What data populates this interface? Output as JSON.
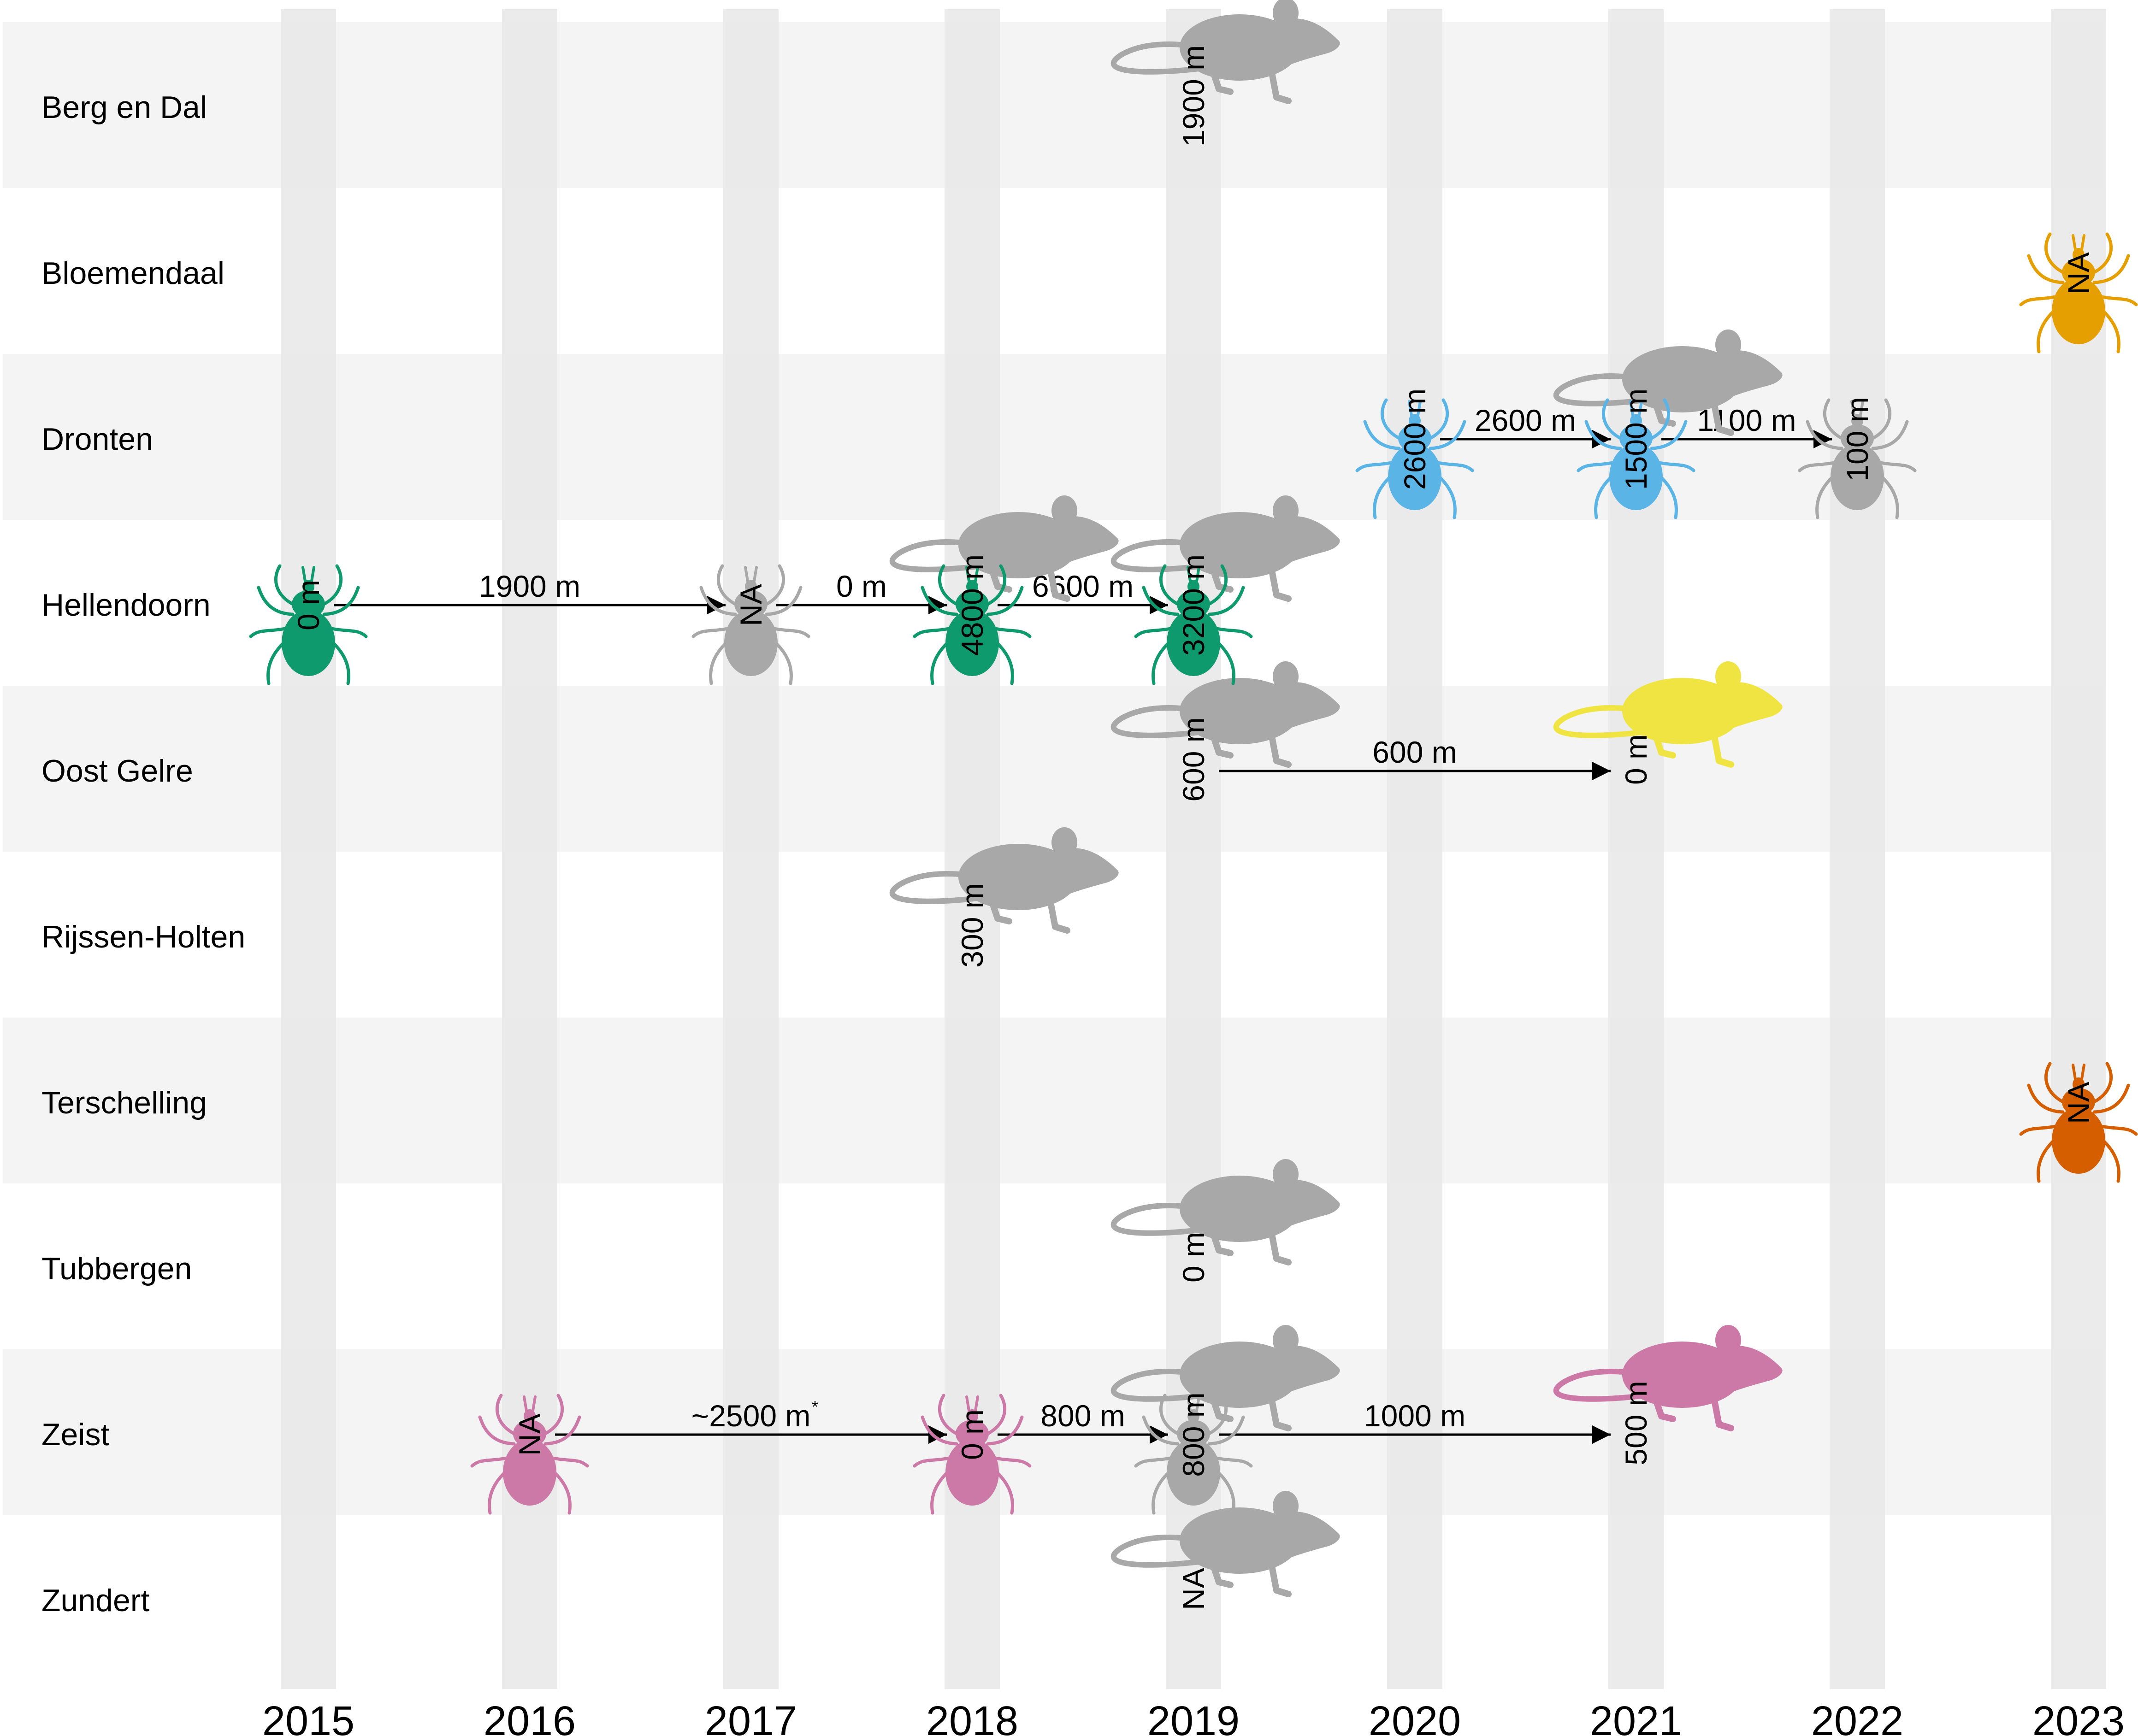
{
  "chart_data": {
    "type": "timeline",
    "years": [
      "2015",
      "2016",
      "2017",
      "2018",
      "2019",
      "2020",
      "2021",
      "2022",
      "2023"
    ],
    "locations": [
      "Berg en Dal",
      "Bloemendaal",
      "Dronten",
      "Hellendoorn",
      "Oost Gelre",
      "Rijssen-Holten",
      "Terschelling",
      "Tubbergen",
      "Zeist",
      "Zundert"
    ],
    "colors": {
      "gray": "#a8a8a8",
      "green": "#0f9a6e",
      "blue": "#5ab4e6",
      "orange": "#e69f00",
      "vermillion": "#d55e00",
      "yellow": "#f0e442",
      "pink": "#cc79a7"
    },
    "events": [
      {
        "id": "e0",
        "location": "Berg en Dal",
        "year": "2019",
        "host": "rodent",
        "color": "gray",
        "distance": "1900 m"
      },
      {
        "id": "e1",
        "location": "Bloemendaal",
        "year": "2023",
        "host": "tick",
        "color": "orange",
        "distance": "NA"
      },
      {
        "id": "e2",
        "location": "Dronten",
        "year": "2020",
        "host": "tick",
        "color": "blue",
        "distance": "2600 m"
      },
      {
        "id": "e3",
        "location": "Dronten",
        "year": "2021",
        "host": "rodent",
        "color": "gray",
        "distance": ""
      },
      {
        "id": "e4",
        "location": "Dronten",
        "year": "2021",
        "host": "tick",
        "color": "blue",
        "distance": "1500 m"
      },
      {
        "id": "e5",
        "location": "Dronten",
        "year": "2022",
        "host": "tick",
        "color": "gray",
        "distance": "100 m"
      },
      {
        "id": "e6",
        "location": "Hellendoorn",
        "year": "2015",
        "host": "tick",
        "color": "green",
        "distance": "0 m"
      },
      {
        "id": "e7",
        "location": "Hellendoorn",
        "year": "2017",
        "host": "tick",
        "color": "gray",
        "distance": "NA"
      },
      {
        "id": "e8",
        "location": "Hellendoorn",
        "year": "2018",
        "host": "rodent",
        "color": "gray",
        "distance": ""
      },
      {
        "id": "e9",
        "location": "Hellendoorn",
        "year": "2018",
        "host": "tick",
        "color": "green",
        "distance": "4800 m"
      },
      {
        "id": "e10",
        "location": "Hellendoorn",
        "year": "2019",
        "host": "rodent",
        "color": "gray",
        "distance": ""
      },
      {
        "id": "e11",
        "location": "Hellendoorn",
        "year": "2019",
        "host": "tick",
        "color": "green",
        "distance": "3200 m"
      },
      {
        "id": "e12",
        "location": "Oost Gelre",
        "year": "2019",
        "host": "rodent",
        "color": "gray",
        "distance": "600 m"
      },
      {
        "id": "e13",
        "location": "Oost Gelre",
        "year": "2021",
        "host": "rodent",
        "color": "yellow",
        "distance": "0 m"
      },
      {
        "id": "e14",
        "location": "Rijssen-Holten",
        "year": "2018",
        "host": "rodent",
        "color": "gray",
        "distance": "300 m"
      },
      {
        "id": "e15",
        "location": "Terschelling",
        "year": "2023",
        "host": "tick",
        "color": "vermillion",
        "distance": "NA"
      },
      {
        "id": "e16",
        "location": "Tubbergen",
        "year": "2019",
        "host": "rodent",
        "color": "gray",
        "distance": "0 m"
      },
      {
        "id": "e17",
        "location": "Zeist",
        "year": "2016",
        "host": "tick",
        "color": "pink",
        "distance": "NA"
      },
      {
        "id": "e18",
        "location": "Zeist",
        "year": "2018",
        "host": "tick",
        "color": "pink",
        "distance": "0 m"
      },
      {
        "id": "e19",
        "location": "Zeist",
        "year": "2019",
        "host": "rodent",
        "color": "gray",
        "distance": ""
      },
      {
        "id": "e20",
        "location": "Zeist",
        "year": "2019",
        "host": "tick",
        "color": "gray",
        "distance": "800 m"
      },
      {
        "id": "e21",
        "location": "Zeist",
        "year": "2021",
        "host": "rodent",
        "color": "pink",
        "distance": "500 m"
      },
      {
        "id": "e22",
        "location": "Zundert",
        "year": "2019",
        "host": "rodent",
        "color": "gray",
        "distance": "NA"
      }
    ],
    "links": [
      {
        "location": "Hellendoorn",
        "from": "2015",
        "to": "2017",
        "label": "1900 m",
        "note": ""
      },
      {
        "location": "Hellendoorn",
        "from": "2017",
        "to": "2018",
        "label": "0 m",
        "note": ""
      },
      {
        "location": "Hellendoorn",
        "from": "2018",
        "to": "2019",
        "label": "6600 m",
        "note": ""
      },
      {
        "location": "Dronten",
        "from": "2020",
        "to": "2021",
        "label": "2600 m",
        "note": ""
      },
      {
        "location": "Dronten",
        "from": "2021",
        "to": "2022",
        "label": "1100 m",
        "note": ""
      },
      {
        "location": "Oost Gelre",
        "from": "2019",
        "to": "2021",
        "label": "600 m",
        "note": ""
      },
      {
        "location": "Zeist",
        "from": "2016",
        "to": "2018",
        "label": "~2500 m",
        "note": "*"
      },
      {
        "location": "Zeist",
        "from": "2018",
        "to": "2019",
        "label": "800 m",
        "note": ""
      },
      {
        "location": "Zeist",
        "from": "2019",
        "to": "2021",
        "label": "1000 m",
        "note": ""
      }
    ]
  }
}
